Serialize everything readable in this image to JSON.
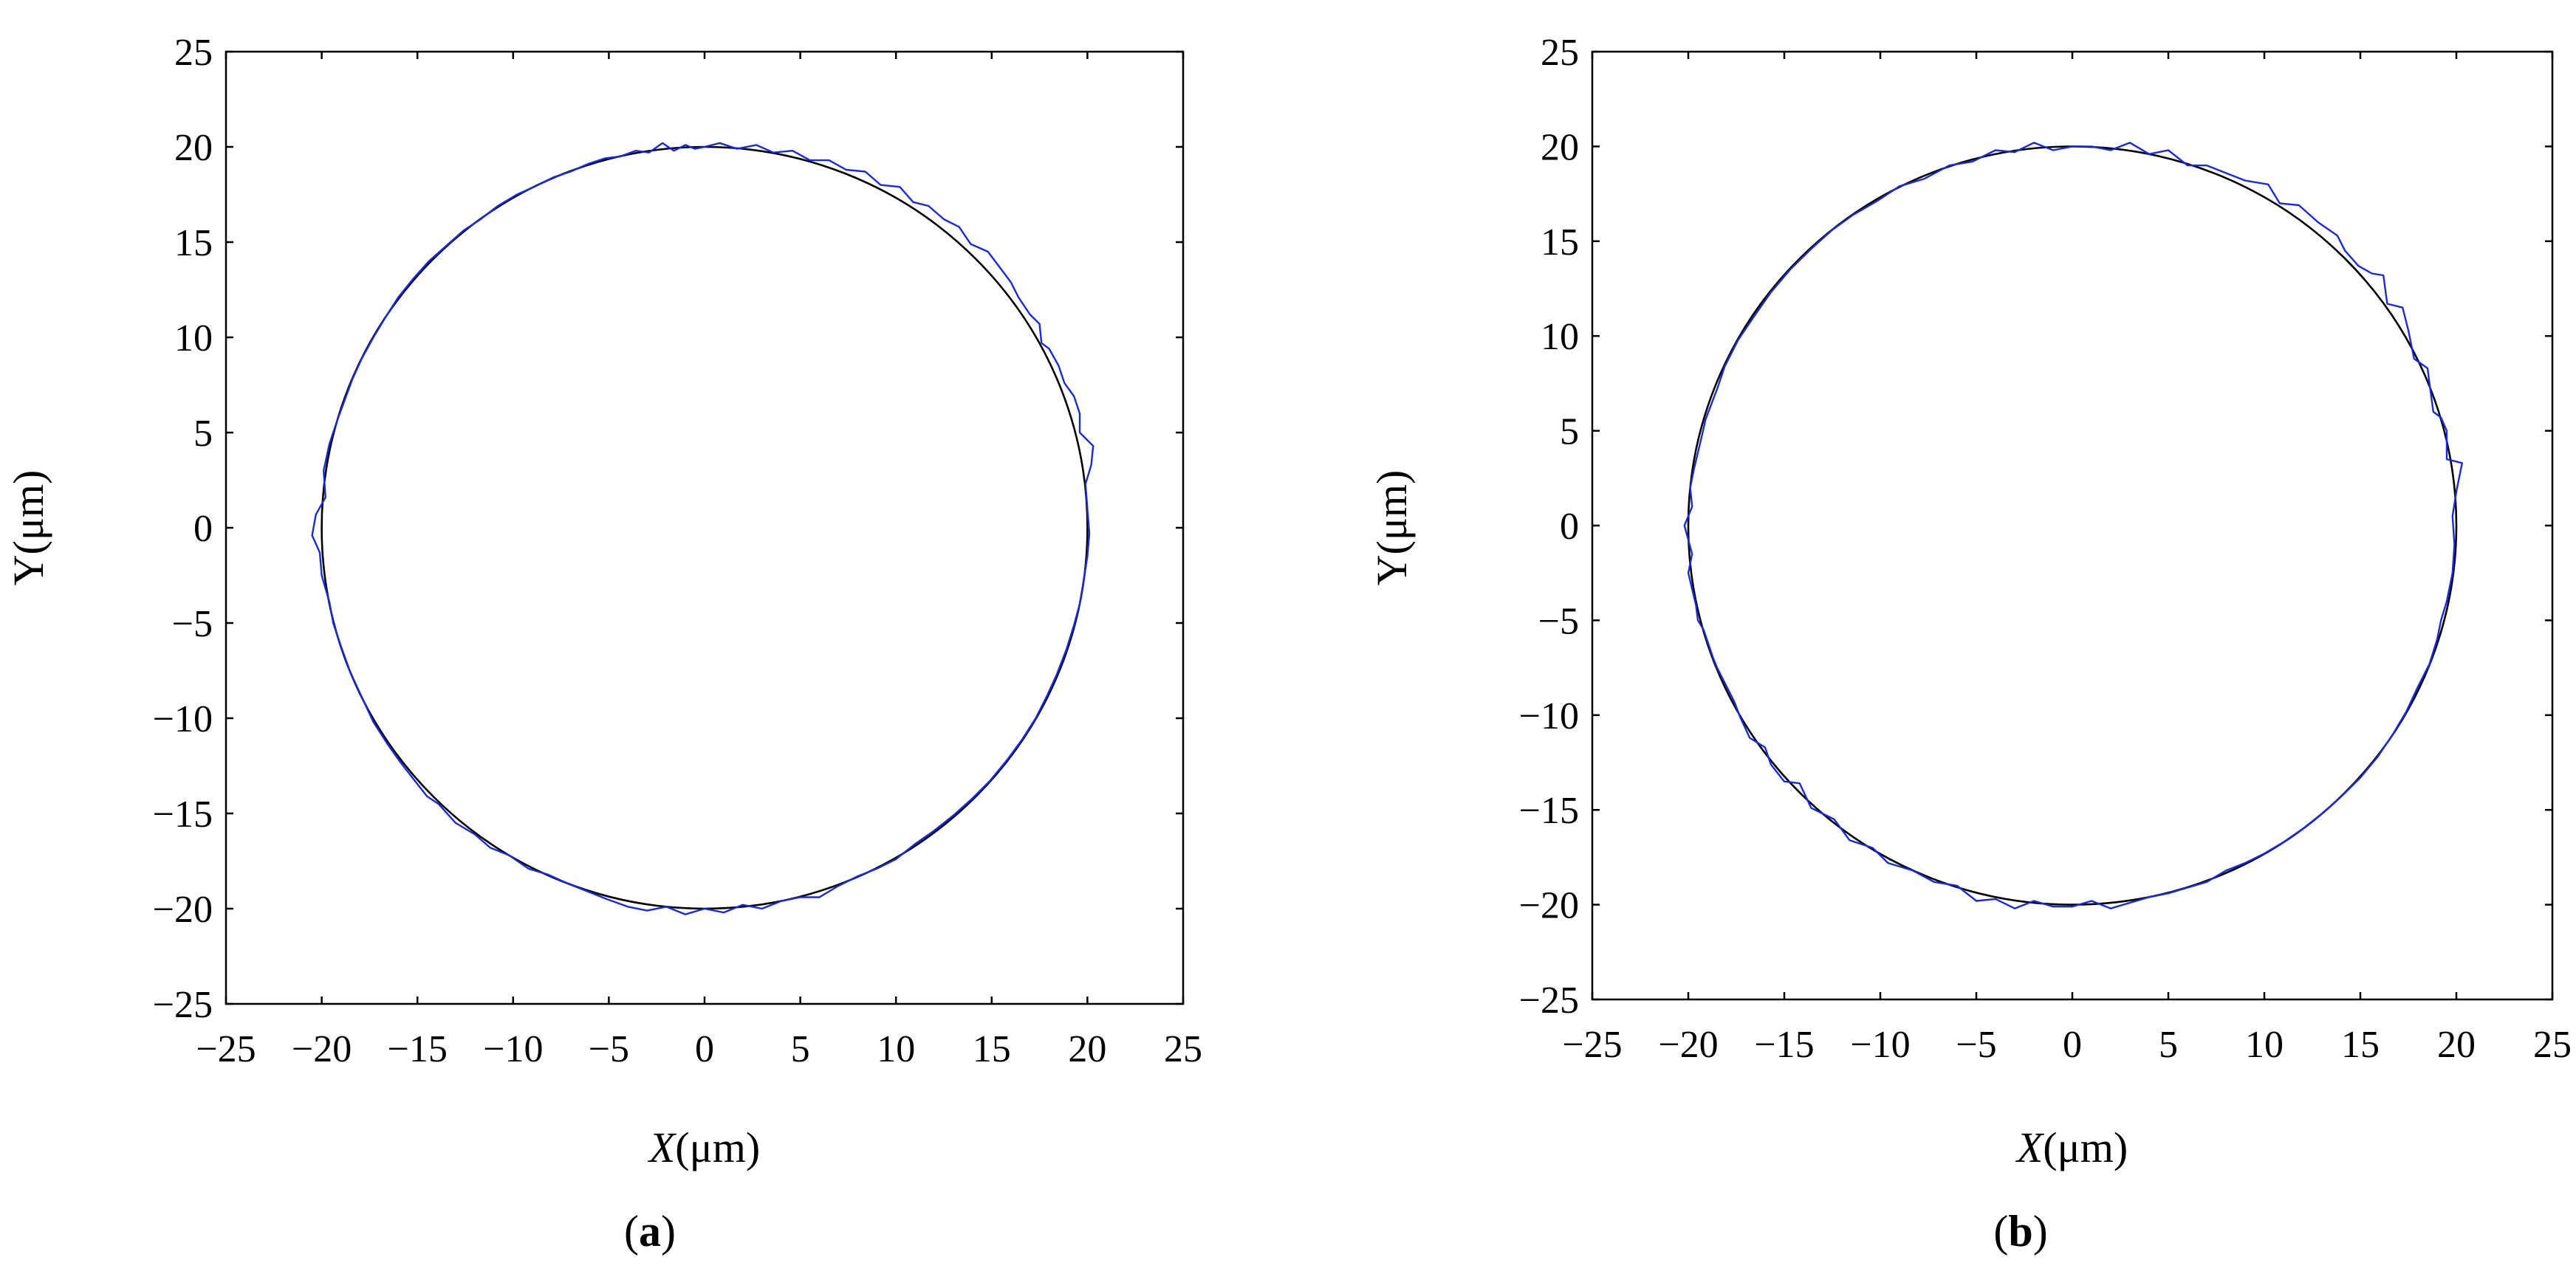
{
  "chart_data": [
    {
      "type": "line",
      "caption_label": "a",
      "xlabel_var": "X",
      "xlabel_unit": "(μm)",
      "ylabel": "Y(μm)",
      "xlim": [
        -25,
        25
      ],
      "ylim": [
        -25,
        25
      ],
      "x_ticks": [
        "−25",
        "−20",
        "−15",
        "−10",
        "−5",
        "0",
        "5",
        "10",
        "15",
        "20",
        "25"
      ],
      "y_ticks": [
        "25",
        "20",
        "15",
        "10",
        "5",
        "0",
        "−5",
        "−10",
        "−15",
        "−20",
        "−25"
      ],
      "grid": false,
      "series": [
        {
          "role": "reference circle",
          "center": [
            0,
            0
          ],
          "radius": 20,
          "color": "#000000"
        },
        {
          "role": "measured trajectory",
          "color": "#1a2ad8",
          "points": [
            [
              0,
              20.0
            ],
            [
              -0.5,
              19.9
            ],
            [
              -1.0,
              20.1
            ],
            [
              -1.6,
              19.8
            ],
            [
              -2.2,
              20.2
            ],
            [
              -2.9,
              19.7
            ],
            [
              -3.6,
              19.8
            ],
            [
              -4.4,
              19.5
            ],
            [
              -5.2,
              19.4
            ],
            [
              -6.1,
              19.1
            ],
            [
              -7.0,
              18.7
            ],
            [
              -7.9,
              18.4
            ],
            [
              -8.9,
              17.9
            ],
            [
              -9.8,
              17.5
            ],
            [
              -10.8,
              16.9
            ],
            [
              -11.7,
              16.2
            ],
            [
              -12.6,
              15.6
            ],
            [
              -13.5,
              14.8
            ],
            [
              -14.4,
              14.0
            ],
            [
              -15.2,
              13.1
            ],
            [
              -16.0,
              12.1
            ],
            [
              -16.7,
              11.0
            ],
            [
              -17.3,
              10.0
            ],
            [
              -17.9,
              8.9
            ],
            [
              -18.4,
              7.8
            ],
            [
              -18.8,
              6.7
            ],
            [
              -19.2,
              5.6
            ],
            [
              -19.6,
              4.4
            ],
            [
              -19.9,
              3.0
            ],
            [
              -19.8,
              1.6
            ],
            [
              -20.3,
              0.7
            ],
            [
              -20.5,
              -0.4
            ],
            [
              -20.1,
              -1.3
            ],
            [
              -20.0,
              -2.5
            ],
            [
              -19.6,
              -3.9
            ],
            [
              -19.4,
              -5.0
            ],
            [
              -19.0,
              -6.2
            ],
            [
              -18.5,
              -7.6
            ],
            [
              -17.9,
              -8.9
            ],
            [
              -17.3,
              -10.2
            ],
            [
              -16.6,
              -11.3
            ],
            [
              -15.9,
              -12.3
            ],
            [
              -15.2,
              -13.2
            ],
            [
              -14.5,
              -14.1
            ],
            [
              -13.9,
              -14.5
            ],
            [
              -13.0,
              -15.5
            ],
            [
              -12.0,
              -16.1
            ],
            [
              -11.2,
              -16.8
            ],
            [
              -10.2,
              -17.2
            ],
            [
              -9.2,
              -17.9
            ],
            [
              -8.2,
              -18.2
            ],
            [
              -7.1,
              -18.7
            ],
            [
              -6.1,
              -19.1
            ],
            [
              -5.1,
              -19.5
            ],
            [
              -4.0,
              -19.9
            ],
            [
              -3.0,
              -20.1
            ],
            [
              -2.0,
              -19.9
            ],
            [
              -1.0,
              -20.3
            ],
            [
              0.0,
              -20.0
            ],
            [
              1.0,
              -20.2
            ],
            [
              2.0,
              -19.8
            ],
            [
              3.0,
              -20.0
            ],
            [
              4.0,
              -19.6
            ],
            [
              5.0,
              -19.4
            ],
            [
              6.0,
              -19.4
            ],
            [
              7.0,
              -18.8
            ],
            [
              8.0,
              -18.3
            ],
            [
              9.0,
              -17.9
            ],
            [
              10.0,
              -17.4
            ],
            [
              11.0,
              -16.6
            ],
            [
              12.0,
              -15.9
            ],
            [
              13.0,
              -15.1
            ],
            [
              14.0,
              -14.2
            ],
            [
              14.9,
              -13.3
            ],
            [
              15.8,
              -12.2
            ],
            [
              16.6,
              -11.1
            ],
            [
              17.3,
              -10.0
            ],
            [
              17.9,
              -8.8
            ],
            [
              18.4,
              -7.7
            ],
            [
              18.9,
              -6.4
            ],
            [
              19.3,
              -5.1
            ],
            [
              19.6,
              -4.0
            ],
            [
              19.8,
              -2.8
            ],
            [
              20.0,
              -1.5
            ],
            [
              20.1,
              -0.3
            ],
            [
              20.0,
              1.0
            ],
            [
              19.9,
              2.3
            ],
            [
              20.2,
              3.3
            ],
            [
              20.3,
              4.3
            ],
            [
              19.6,
              5.0
            ],
            [
              19.6,
              6.0
            ],
            [
              19.3,
              6.9
            ],
            [
              18.8,
              7.6
            ],
            [
              18.5,
              8.5
            ],
            [
              18.0,
              9.4
            ],
            [
              17.6,
              9.7
            ],
            [
              17.5,
              10.7
            ],
            [
              17.0,
              11.2
            ],
            [
              16.4,
              12.1
            ],
            [
              16.0,
              12.9
            ],
            [
              15.4,
              13.7
            ],
            [
              14.8,
              14.5
            ],
            [
              13.9,
              14.9
            ],
            [
              13.3,
              15.8
            ],
            [
              12.5,
              16.2
            ],
            [
              11.7,
              16.9
            ],
            [
              10.9,
              17.1
            ],
            [
              10.2,
              17.9
            ],
            [
              9.2,
              18.0
            ],
            [
              8.4,
              18.7
            ],
            [
              7.4,
              18.8
            ],
            [
              6.5,
              19.3
            ],
            [
              5.5,
              19.3
            ],
            [
              4.6,
              19.8
            ],
            [
              3.6,
              19.7
            ],
            [
              2.7,
              20.1
            ],
            [
              1.7,
              19.9
            ],
            [
              0.8,
              20.2
            ],
            [
              0,
              20.0
            ]
          ]
        }
      ]
    },
    {
      "type": "line",
      "caption_label": "b",
      "xlabel_var": "X",
      "xlabel_unit": "(μm)",
      "ylabel": "Y(μm)",
      "xlim": [
        -25,
        25
      ],
      "ylim": [
        -25,
        25
      ],
      "x_ticks": [
        "−25",
        "−20",
        "−15",
        "−10",
        "−5",
        "0",
        "5",
        "10",
        "15",
        "20",
        "25"
      ],
      "y_ticks": [
        "25",
        "20",
        "15",
        "10",
        "5",
        "0",
        "−5",
        "−10",
        "−15",
        "−20",
        "−25"
      ],
      "grid": false,
      "series": [
        {
          "role": "reference circle",
          "center": [
            0,
            0
          ],
          "radius": 20,
          "color": "#000000"
        },
        {
          "role": "measured trajectory",
          "color": "#1a2ad8",
          "points": [
            [
              0,
              20.0
            ],
            [
              -1.0,
              19.8
            ],
            [
              -2.0,
              20.2
            ],
            [
              -3.0,
              19.7
            ],
            [
              -4.0,
              19.8
            ],
            [
              -5.2,
              19.2
            ],
            [
              -6.4,
              19.0
            ],
            [
              -7.7,
              18.3
            ],
            [
              -9.0,
              17.9
            ],
            [
              -10.2,
              17.1
            ],
            [
              -11.4,
              16.4
            ],
            [
              -12.5,
              15.6
            ],
            [
              -13.6,
              14.6
            ],
            [
              -14.7,
              13.5
            ],
            [
              -15.7,
              12.3
            ],
            [
              -16.6,
              11.0
            ],
            [
              -17.4,
              9.8
            ],
            [
              -18.1,
              8.4
            ],
            [
              -18.5,
              7.2
            ],
            [
              -19.1,
              5.6
            ],
            [
              -19.3,
              4.7
            ],
            [
              -19.7,
              3.0
            ],
            [
              -19.9,
              2.0
            ],
            [
              -19.8,
              1.0
            ],
            [
              -20.2,
              0.0
            ],
            [
              -19.8,
              -1.5
            ],
            [
              -20.0,
              -2.5
            ],
            [
              -19.6,
              -4.2
            ],
            [
              -19.5,
              -5.0
            ],
            [
              -19.2,
              -5.5
            ],
            [
              -18.7,
              -7.0
            ],
            [
              -18.5,
              -7.5
            ],
            [
              -17.6,
              -9.3
            ],
            [
              -17.3,
              -10.1
            ],
            [
              -16.8,
              -11.2
            ],
            [
              -16.0,
              -11.7
            ],
            [
              -15.7,
              -12.6
            ],
            [
              -15.0,
              -13.5
            ],
            [
              -14.2,
              -13.6
            ],
            [
              -13.6,
              -14.9
            ],
            [
              -12.4,
              -15.5
            ],
            [
              -11.6,
              -16.6
            ],
            [
              -10.4,
              -17.0
            ],
            [
              -9.6,
              -17.8
            ],
            [
              -8.3,
              -18.2
            ],
            [
              -7.2,
              -18.8
            ],
            [
              -6.0,
              -19.0
            ],
            [
              -5.0,
              -19.8
            ],
            [
              -4.0,
              -19.7
            ],
            [
              -3.0,
              -20.2
            ],
            [
              -2.0,
              -19.8
            ],
            [
              -1.0,
              -20.1
            ],
            [
              0.0,
              -20.1
            ],
            [
              1.0,
              -19.8
            ],
            [
              2.0,
              -20.2
            ],
            [
              3.0,
              -19.9
            ],
            [
              4.0,
              -19.6
            ],
            [
              5.0,
              -19.4
            ],
            [
              6.0,
              -19.1
            ],
            [
              7.0,
              -18.8
            ],
            [
              8.0,
              -18.2
            ],
            [
              9.0,
              -17.8
            ],
            [
              10.0,
              -17.3
            ],
            [
              11.0,
              -16.7
            ],
            [
              12.0,
              -16.0
            ],
            [
              13.0,
              -15.2
            ],
            [
              14.0,
              -14.3
            ],
            [
              15.0,
              -13.3
            ],
            [
              15.9,
              -12.2
            ],
            [
              16.7,
              -11.0
            ],
            [
              17.4,
              -9.8
            ],
            [
              18.0,
              -8.5
            ],
            [
              18.6,
              -7.3
            ],
            [
              19.0,
              -6.0
            ],
            [
              19.2,
              -5.0
            ],
            [
              19.5,
              -4.0
            ],
            [
              19.8,
              -2.5
            ],
            [
              19.9,
              -1.0
            ],
            [
              19.8,
              0.5
            ],
            [
              20.0,
              1.8
            ],
            [
              20.3,
              3.3
            ],
            [
              19.5,
              3.5
            ],
            [
              19.5,
              5.0
            ],
            [
              19.2,
              5.7
            ],
            [
              18.8,
              6.0
            ],
            [
              18.6,
              7.5
            ],
            [
              18.5,
              8.3
            ],
            [
              17.8,
              8.8
            ],
            [
              17.5,
              10.3
            ],
            [
              17.2,
              11.5
            ],
            [
              16.4,
              11.7
            ],
            [
              16.2,
              13.2
            ],
            [
              15.6,
              13.3
            ],
            [
              14.9,
              13.7
            ],
            [
              14.2,
              14.5
            ],
            [
              13.8,
              15.3
            ],
            [
              12.8,
              16.0
            ],
            [
              11.8,
              16.9
            ],
            [
              10.8,
              17.0
            ],
            [
              10.2,
              18.0
            ],
            [
              9.0,
              18.2
            ],
            [
              8.0,
              18.6
            ],
            [
              7.0,
              19.0
            ],
            [
              6.0,
              19.0
            ],
            [
              5.0,
              19.8
            ],
            [
              4.0,
              19.6
            ],
            [
              3.0,
              20.2
            ],
            [
              2.0,
              19.8
            ],
            [
              1.0,
              20.0
            ],
            [
              0,
              20.0
            ]
          ]
        }
      ]
    }
  ]
}
